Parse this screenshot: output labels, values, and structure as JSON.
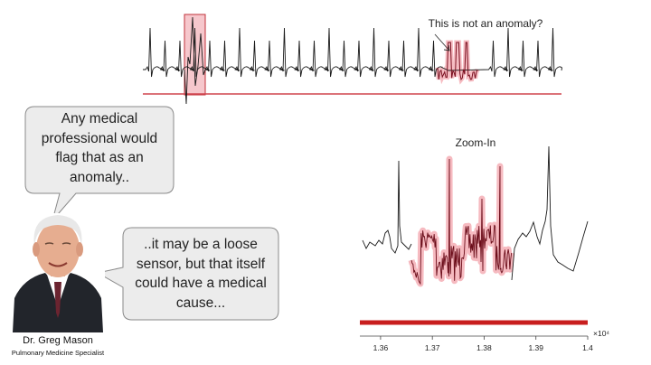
{
  "chart_data": [
    {
      "type": "line",
      "name_hint": "overview",
      "annotation": "This is not an anomaly?",
      "highlight_box": true
    },
    {
      "type": "line",
      "title": "Zoom-In",
      "x_ticks": [
        "1.36",
        "1.37",
        "1.38",
        "1.39",
        "1.4"
      ],
      "x_exponent": "×10⁴",
      "xlim": [
        1.356,
        1.4
      ],
      "grid": false,
      "legend": "none"
    }
  ],
  "speech": {
    "left_bubble": "Any medical professional would flag that as an anomaly..",
    "right_bubble": "..it may be a loose sensor, but that itself could have a medical cause..."
  },
  "person": {
    "name": "Dr. Greg Mason",
    "title": "Pulmonary Medicine Specialist"
  },
  "colors": {
    "signal": "#1a1a1a",
    "highlight": "#e06070",
    "baseline": "#c81e1e"
  }
}
